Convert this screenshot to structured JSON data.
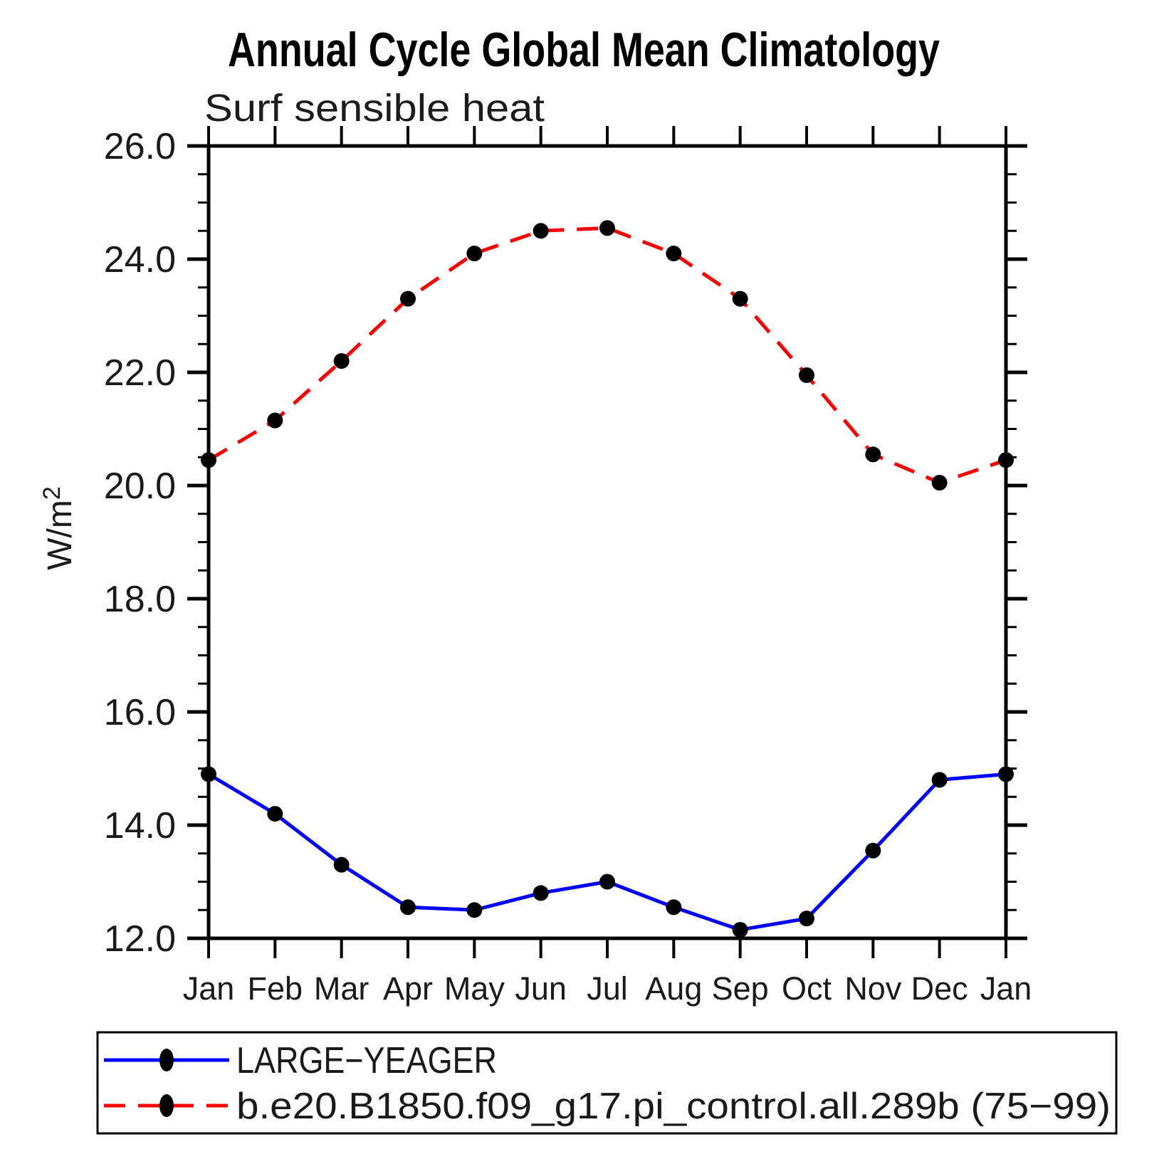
{
  "chart_data": {
    "type": "line",
    "title": "Annual Cycle Global Mean Climatology",
    "subtitle": "Surf sensible heat",
    "ylabel": {
      "base": "W/m",
      "exp": "2"
    },
    "categories": [
      "Jan",
      "Feb",
      "Mar",
      "Apr",
      "May",
      "Jun",
      "Jul",
      "Aug",
      "Sep",
      "Oct",
      "Nov",
      "Dec",
      "Jan"
    ],
    "ylim": [
      12.0,
      26.0
    ],
    "y_major_step": 2.0,
    "y_minor_step": 0.5,
    "y_tick_labels": [
      "12.0",
      "14.0",
      "16.0",
      "18.0",
      "20.0",
      "22.0",
      "24.0",
      "26.0"
    ],
    "grid": false,
    "legend_position": "bottom",
    "axis_color": "#000000",
    "marker_color": "#000000",
    "series": [
      {
        "name": "LARGE−YEAGER",
        "line_style": "solid",
        "color": "#0000ff",
        "values": [
          14.9,
          14.2,
          13.3,
          12.55,
          12.5,
          12.8,
          13.0,
          12.55,
          12.15,
          12.35,
          13.55,
          14.8,
          14.9
        ]
      },
      {
        "name": "b.e20.B1850.f09_g17.pi_control.all.289b (75−99)",
        "line_style": "dashed",
        "color": "#ff0000",
        "values": [
          20.45,
          21.15,
          22.2,
          23.3,
          24.1,
          24.5,
          24.55,
          24.1,
          23.3,
          21.95,
          20.55,
          20.05,
          20.45
        ]
      }
    ]
  }
}
